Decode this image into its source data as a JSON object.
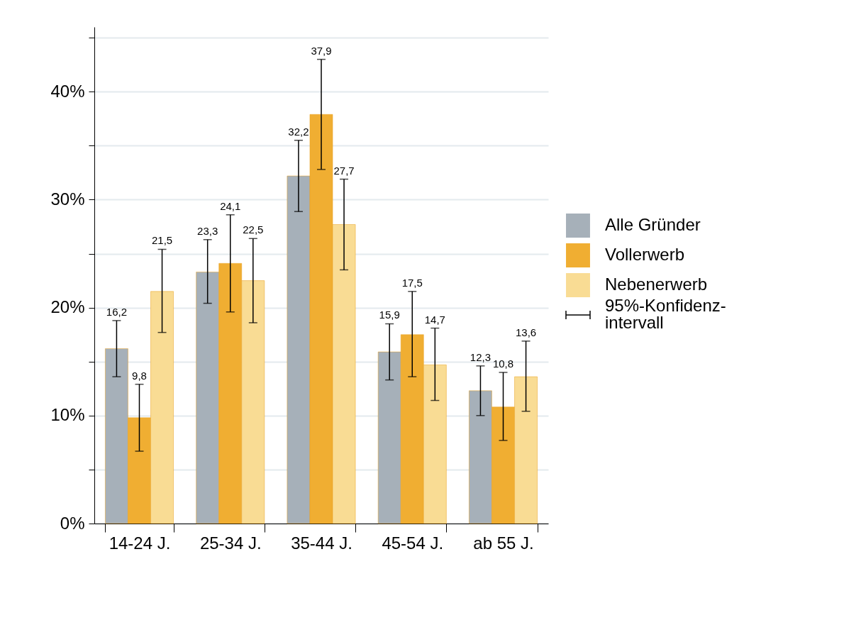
{
  "chart_data": {
    "type": "bar",
    "categories": [
      "14-24 J.",
      "25-34 J.",
      "35-44 J.",
      "45-54 J.",
      "ab 55 J."
    ],
    "series": [
      {
        "name": "Alle Gründer",
        "color": "#a6b0b9",
        "values": [
          16.2,
          23.3,
          32.2,
          15.9,
          12.3
        ],
        "errors": [
          [
            13.6,
            18.8
          ],
          [
            20.4,
            26.3
          ],
          [
            28.9,
            35.5
          ],
          [
            13.3,
            18.5
          ],
          [
            10.0,
            14.6
          ]
        ]
      },
      {
        "name": "Vollerwerb",
        "color": "#f0ae32",
        "values": [
          9.8,
          24.1,
          37.9,
          17.5,
          10.8
        ],
        "errors": [
          [
            6.7,
            12.9
          ],
          [
            19.6,
            28.6
          ],
          [
            32.8,
            43.0
          ],
          [
            13.6,
            21.5
          ],
          [
            7.7,
            14.0
          ]
        ]
      },
      {
        "name": "Nebenerwerb",
        "color": "#f9dc94",
        "values": [
          21.5,
          22.5,
          27.7,
          14.7,
          13.6
        ],
        "errors": [
          [
            17.7,
            25.4
          ],
          [
            18.6,
            26.4
          ],
          [
            23.5,
            31.9
          ],
          [
            11.4,
            18.1
          ],
          [
            10.4,
            16.9
          ]
        ]
      }
    ],
    "value_labels": [
      [
        "16,2",
        "23,3",
        "32,2",
        "15,9",
        "12,3"
      ],
      [
        "9,8",
        "24,1",
        "37,9",
        "17,5",
        "10,8"
      ],
      [
        "21,5",
        "22,5",
        "27,7",
        "14,7",
        "13,6"
      ]
    ],
    "ylim": [
      0,
      46
    ],
    "yticks": [
      {
        "value": 0,
        "label": "0%"
      },
      {
        "value": 5,
        "label": null
      },
      {
        "value": 10,
        "label": "10%"
      },
      {
        "value": 15,
        "label": null
      },
      {
        "value": 20,
        "label": "20%"
      },
      {
        "value": 25,
        "label": null
      },
      {
        "value": 30,
        "label": "30%"
      },
      {
        "value": 35,
        "label": null
      },
      {
        "value": 40,
        "label": "40%"
      },
      {
        "value": 45,
        "label": null
      }
    ],
    "grid": "y",
    "legend": "right",
    "annotations": [
      "95%-Konfidenz-intervall"
    ]
  }
}
